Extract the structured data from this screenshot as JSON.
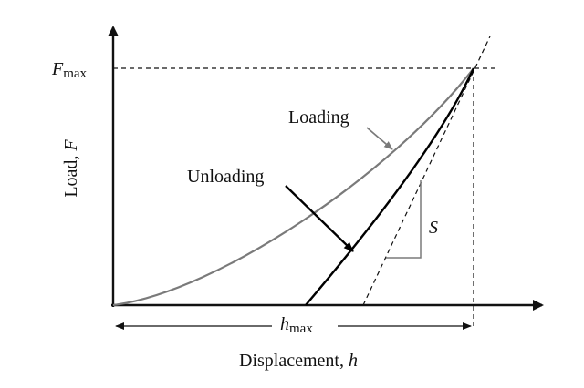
{
  "diagram": {
    "y_axis_label": {
      "text": "Load, ",
      "symbol": "F"
    },
    "x_axis_label": {
      "text": "Displacement, ",
      "symbol": "h"
    },
    "fmax_label": {
      "symbol": "F",
      "subscript": "max"
    },
    "hmax_label": {
      "symbol": "h",
      "subscript": "max"
    },
    "loading_label": "Loading",
    "unloading_label": "Unloading",
    "stiffness_label": "S",
    "colors": {
      "axes": "#111111",
      "loading_curve": "#7a7a7a",
      "unloading_curve": "#000000",
      "dashed": "#111111",
      "slope_triangle": "#7a7a7a"
    }
  }
}
